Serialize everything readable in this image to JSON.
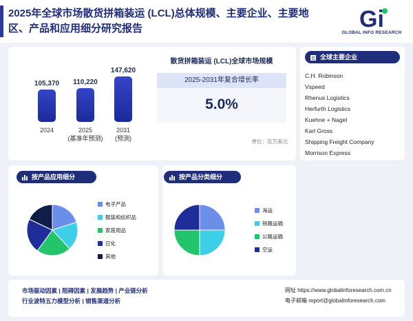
{
  "header": {
    "title": "2025年全球市场散货拼箱装运 (LCL)总体规模、主要企业、主要地区、产品和应用细分研究报告",
    "logo_text": "GLOBAL INFO RESEARCH",
    "logo_letters": "Gi"
  },
  "market": {
    "chart_title": "散货拼箱装运 (LCL)全球市场规模",
    "cagr_label": "2025-2031年复合增长率",
    "cagr_value": "5.0%",
    "unit": "单位：百万美元"
  },
  "chart_data": {
    "type": "bar",
    "categories": [
      "2024",
      "2025",
      "2031"
    ],
    "values": [
      105370,
      110220,
      147620
    ],
    "value_labels": [
      "105,370",
      "110,220",
      "147,620"
    ],
    "sublabels": [
      "",
      "(基准年预测)",
      "(预测)"
    ]
  },
  "companies": {
    "title": "全球主要企业",
    "items": [
      "C.H. Robinson",
      "Vspeed",
      "Rhenus Logistics",
      "Herfurth Logistics",
      "Kuehne + Nagel",
      "Karl Gross",
      "Shipping Freight Company",
      "Morrison Express"
    ]
  },
  "application": {
    "title": "按产品应用细分",
    "segments": [
      {
        "name": "电子产品",
        "value": 20,
        "color": "#6b8ee8"
      },
      {
        "name": "服装和纺织品",
        "value": 18,
        "color": "#3ecfe8"
      },
      {
        "name": "家居用品",
        "value": 22,
        "color": "#22c56b"
      },
      {
        "name": "日化",
        "value": 22,
        "color": "#1f2d9a"
      },
      {
        "name": "其他",
        "value": 18,
        "color": "#0f1e48"
      }
    ]
  },
  "product_type": {
    "title": "按产品分类细分",
    "segments": [
      {
        "name": "海运",
        "value": 25,
        "color": "#6b8ee8"
      },
      {
        "name": "铁路运输",
        "value": 25,
        "color": "#3ecfe8"
      },
      {
        "name": "公路运输",
        "value": 25,
        "color": "#22c56b"
      },
      {
        "name": "空运",
        "value": 25,
        "color": "#1f2d9a"
      }
    ]
  },
  "footer": {
    "links_row1": "市场驱动因素  |  阻碍因素  |  发展趋势  |  产业链分析",
    "links_row2": "行业波特五力模型分析  |  销售渠道分析",
    "website": "网址 https://www.globalinforesearch.com.cn",
    "email": "电子邮箱 report@globalinforesearch.com"
  }
}
